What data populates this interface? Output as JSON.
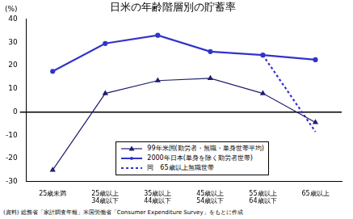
{
  "chart_data": {
    "type": "line",
    "title": "日米の年齢階層別の貯蓄率",
    "ylabel": "(%)",
    "categories": [
      "25歳未満",
      "25歳以上34歳以下",
      "35歳以上44歳以下",
      "45歳以上54歳以下",
      "55歳以上64歳以下",
      "65歳以上"
    ],
    "series": [
      {
        "name": "99年米国(勤労者・無職・単身世帯平均)",
        "color": "#1f1f6e",
        "marker": "triangle",
        "line_style": "solid",
        "values": [
          -25,
          8,
          13.5,
          14.5,
          8,
          -4.5
        ]
      },
      {
        "name": "2000年日本(単身を除く勤労者世帯)",
        "color": "#3333cc",
        "marker": "circle",
        "line_style": "solid",
        "values": [
          17.5,
          29.5,
          33,
          26,
          24.5,
          22.5
        ]
      },
      {
        "name": "同　65歳以上無職世帯",
        "color": "#3333cc",
        "marker": "none",
        "line_style": "dotted",
        "values": [
          null,
          null,
          null,
          null,
          24.5,
          -8.5
        ]
      }
    ],
    "ylim": [
      -30,
      40
    ],
    "yticks": [
      -30,
      -20,
      -10,
      0,
      10,
      20,
      30,
      40
    ],
    "grid": false,
    "legend": "bottom",
    "annotations": [
      "(資料) 総務省「家計調査年報」米国労働省「Consumer Expenditure Survey」をもとに作成"
    ]
  }
}
